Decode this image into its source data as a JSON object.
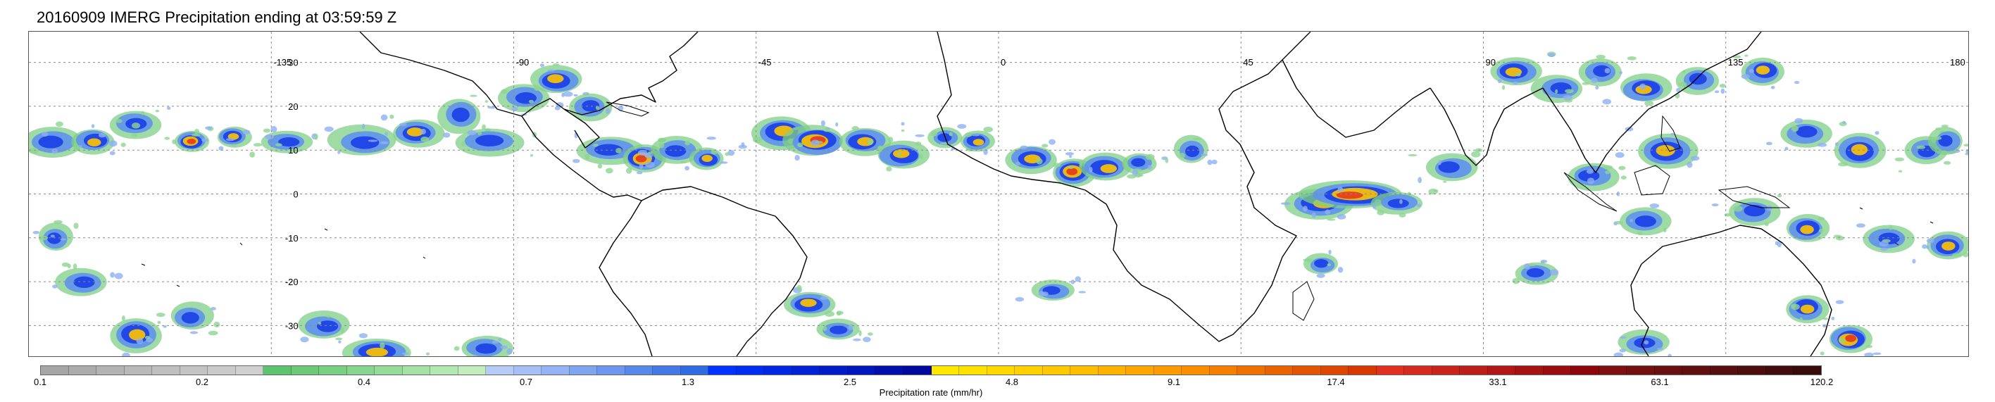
{
  "title": "20160909 IMERG Precipitation ending at 03:59:59 Z",
  "map": {
    "projection": "equirectangular",
    "lon_range": [
      -180,
      180
    ],
    "lat_range": [
      -37,
      37
    ],
    "longitude_labels": [
      {
        "lon": -135,
        "text": "-135"
      },
      {
        "lon": -90,
        "text": "-90"
      },
      {
        "lon": -45,
        "text": "-45"
      },
      {
        "lon": 0,
        "text": "0"
      },
      {
        "lon": 45,
        "text": "45"
      },
      {
        "lon": 90,
        "text": "90"
      },
      {
        "lon": 135,
        "text": "135"
      },
      {
        "lon": 180,
        "text": "180"
      }
    ],
    "latitude_labels": [
      {
        "lat": 30,
        "text": "30"
      },
      {
        "lat": 20,
        "text": "20"
      },
      {
        "lat": 10,
        "text": "10"
      },
      {
        "lat": 0,
        "text": "0"
      },
      {
        "lat": -10,
        "text": "-10"
      },
      {
        "lat": -20,
        "text": "-20"
      },
      {
        "lat": -30,
        "text": "-30"
      }
    ],
    "grid": true,
    "precip_cells": [
      [
        -176,
        12,
        3.5,
        2.2,
        3
      ],
      [
        -168,
        12,
        2.5,
        1.8,
        4
      ],
      [
        -160,
        16,
        3,
        2,
        3
      ],
      [
        -150,
        12,
        2,
        1.5,
        5
      ],
      [
        -142,
        13,
        2,
        1.5,
        4
      ],
      [
        -132,
        12,
        3,
        1.6,
        3
      ],
      [
        -118,
        12,
        4,
        2.2,
        3
      ],
      [
        -108,
        14,
        3,
        2,
        4
      ],
      [
        -100,
        18,
        2.5,
        2.5,
        3
      ],
      [
        -95,
        12,
        4,
        2,
        3
      ],
      [
        -88,
        22,
        3,
        2,
        3
      ],
      [
        -82,
        26,
        3,
        2,
        4
      ],
      [
        -76,
        20,
        2.5,
        2,
        3
      ],
      [
        -72,
        10,
        4,
        2,
        3
      ],
      [
        -66,
        8,
        2.5,
        2,
        5
      ],
      [
        -60,
        10,
        3,
        2,
        3
      ],
      [
        -54,
        8,
        2,
        1.6,
        4
      ],
      [
        -40,
        14,
        3.5,
        2.4,
        4
      ],
      [
        -34,
        12,
        3.5,
        2.2,
        5
      ],
      [
        -25,
        12,
        3,
        2,
        4
      ],
      [
        -18,
        9,
        3,
        2,
        4
      ],
      [
        -10,
        13,
        2,
        1.5,
        3
      ],
      [
        -4,
        12,
        2,
        1.5,
        4
      ],
      [
        6,
        8,
        3,
        2,
        4
      ],
      [
        14,
        5,
        2.5,
        2,
        5
      ],
      [
        20,
        6,
        3,
        2,
        4
      ],
      [
        26,
        7,
        2,
        1.5,
        3
      ],
      [
        36,
        10,
        2,
        2,
        3
      ],
      [
        60,
        -2,
        4,
        2.2,
        4
      ],
      [
        66,
        0,
        6,
        2,
        5
      ],
      [
        74,
        -2,
        3,
        1.6,
        3
      ],
      [
        84,
        6,
        3,
        2,
        3
      ],
      [
        96,
        28,
        3,
        2,
        4
      ],
      [
        104,
        24,
        3,
        2,
        3
      ],
      [
        112,
        28,
        2.5,
        2,
        3
      ],
      [
        120,
        24,
        3,
        2,
        4
      ],
      [
        124,
        10,
        3.5,
        2.5,
        4
      ],
      [
        130,
        26,
        2.5,
        2,
        3
      ],
      [
        142,
        28,
        2.5,
        2,
        4
      ],
      [
        150,
        14,
        3,
        2,
        3
      ],
      [
        160,
        10,
        3,
        2.5,
        4
      ],
      [
        172,
        10,
        2.5,
        2,
        3
      ],
      [
        176,
        12,
        2,
        2,
        3
      ],
      [
        110,
        4,
        3,
        2,
        3
      ],
      [
        120,
        -6,
        3,
        2,
        3
      ],
      [
        140,
        -4,
        3,
        2,
        3
      ],
      [
        150,
        -8,
        2.5,
        2,
        4
      ],
      [
        165,
        -10,
        3,
        2,
        3
      ],
      [
        176,
        -12,
        2.5,
        2,
        4
      ],
      [
        -175,
        -10,
        2,
        2,
        3
      ],
      [
        -170,
        -20,
        3,
        2,
        3
      ],
      [
        -160,
        -32,
        3,
        2.5,
        4
      ],
      [
        -150,
        -28,
        2.5,
        2,
        3
      ],
      [
        -125,
        -30,
        3,
        2,
        3
      ],
      [
        -115,
        -36,
        4,
        2,
        4
      ],
      [
        -95,
        -35,
        3,
        1.8,
        3
      ],
      [
        -35,
        -25,
        3,
        1.8,
        4
      ],
      [
        -30,
        -31,
        2.5,
        1.5,
        3
      ],
      [
        10,
        -22,
        2.5,
        1.5,
        3
      ],
      [
        60,
        -16,
        2,
        1.5,
        3
      ],
      [
        100,
        -18,
        2.5,
        1.6,
        3
      ],
      [
        120,
        -34,
        3,
        1.8,
        3
      ],
      [
        150,
        -26,
        2.5,
        2,
        4
      ],
      [
        158,
        -33,
        2.5,
        2,
        5
      ]
    ]
  },
  "colorbar": {
    "label": "Precipitation rate (mm/hr)",
    "colors": [
      "#a6a6a6",
      "#acacac",
      "#b3b3b3",
      "#b9b9b9",
      "#bfbfbf",
      "#c4c4c4",
      "#cacaca",
      "#d0d0d0",
      "#5ec36d",
      "#6bc977",
      "#79cf82",
      "#87d58e",
      "#96dc99",
      "#a4e2a5",
      "#b3e8b0",
      "#c1eebc",
      "#b6ccf7",
      "#a6c0f6",
      "#93b3f4",
      "#7fa5f1",
      "#6b97ee",
      "#5789ea",
      "#437ae6",
      "#2f6be1",
      "#0033ff",
      "#002df2",
      "#0027e4",
      "#0021d6",
      "#001bc8",
      "#0015ba",
      "#000fac",
      "#00099e",
      "#ffe800",
      "#ffe100",
      "#ffd900",
      "#ffd100",
      "#ffc800",
      "#ffbe00",
      "#ffb300",
      "#ffa700",
      "#ff9a00",
      "#fb8d00",
      "#f57f00",
      "#ef7100",
      "#e96300",
      "#e35500",
      "#dd4700",
      "#d73900",
      "#e03020",
      "#d52a1e",
      "#c9241b",
      "#bd1e18",
      "#b11815",
      "#a51212",
      "#990c0f",
      "#8d060c",
      "#7e1010",
      "#741010",
      "#6a0f0f",
      "#600f0f",
      "#560e0e",
      "#4c0d0d",
      "#420c0c",
      "#380b0b"
    ],
    "tick_labels": [
      "0.1",
      "0.2",
      "0.4",
      "0.7",
      "1.3",
      "2.5",
      "4.8",
      "9.1",
      "17.4",
      "33.1",
      "63.1",
      "120.2"
    ]
  }
}
